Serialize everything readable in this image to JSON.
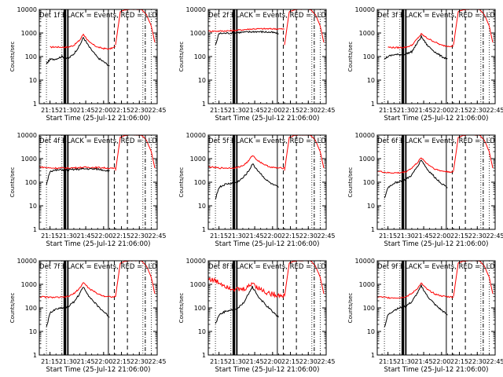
{
  "chart_data": [
    {
      "type": "line",
      "title": "Det 1f BLACK = Events, RED = LLD",
      "xlabel": "Start Time (25-Jul-12 21:06:00)",
      "ylabel": "Counts/sec",
      "x_ticks": [
        "21:15",
        "21:30",
        "21:45",
        "22:00",
        "22:15",
        "22:30",
        "22:45"
      ],
      "y_ticks": [
        "1",
        "10",
        "100",
        "1000",
        "10000"
      ],
      "ylim": [
        1,
        10000
      ],
      "y_scale": "log",
      "series": [
        {
          "x": [
            "21:15",
            "21:20",
            "21:25",
            "21:30",
            "21:35",
            "21:40",
            "21:43",
            "21:48",
            "21:55",
            "22:00",
            "22:05",
            "22:10"
          ],
          "values": [
            250,
            255,
            250,
            250,
            300,
            500,
            900,
            400,
            250,
            220,
            210,
            260
          ]
        },
        {
          "x": [
            "21:12",
            "21:15",
            "21:20",
            "21:25",
            "21:30",
            "21:35",
            "21:40",
            "21:43",
            "21:48",
            "21:55",
            "22:00",
            "22:05"
          ],
          "values": [
            50,
            75,
            80,
            100,
            80,
            130,
            300,
            650,
            250,
            90,
            60,
            40
          ]
        }
      ]
    },
    {
      "type": "line",
      "title": "Det 2f BLACK = Events, RED = LLD",
      "xlabel": "Start Time (25-Jul-12 21:06:00)",
      "ylabel": "Counts/sec",
      "x_ticks": [
        "21:15",
        "21:30",
        "21:45",
        "22:00",
        "22:15",
        "22:30",
        "22:45"
      ],
      "y_ticks": [
        "1",
        "10",
        "100",
        "1000",
        "10000"
      ],
      "ylim": [
        1,
        10000
      ],
      "y_scale": "log",
      "series": [
        {
          "x": [
            "21:06",
            "21:15",
            "21:25",
            "21:30",
            "21:40",
            "21:45",
            "21:55",
            "22:00",
            "22:05",
            "22:10"
          ],
          "values": [
            1200,
            1200,
            1250,
            1300,
            1450,
            1500,
            1500,
            1500,
            1500,
            1450
          ]
        },
        {
          "x": [
            "21:12",
            "21:15",
            "21:25",
            "21:30",
            "21:40",
            "21:45",
            "21:55",
            "22:00",
            "22:05"
          ],
          "values": [
            300,
            950,
            1000,
            1050,
            1100,
            1150,
            1100,
            1050,
            950
          ]
        }
      ]
    },
    {
      "type": "line",
      "title": "Det 3f BLACK = Events, RED = LLD",
      "xlabel": "Start Time (25-Jul-12 21:06:00)",
      "ylabel": "Counts/sec",
      "x_ticks": [
        "21:15",
        "21:30",
        "21:45",
        "22:00",
        "22:15",
        "22:30",
        "22:45"
      ],
      "y_ticks": [
        "1",
        "10",
        "100",
        "1000",
        "10000"
      ],
      "ylim": [
        1,
        10000
      ],
      "y_scale": "log",
      "series": [
        {
          "x": [
            "21:15",
            "21:20",
            "21:25",
            "21:30",
            "21:35",
            "21:40",
            "21:43",
            "21:48",
            "21:55",
            "22:00",
            "22:05",
            "22:10"
          ],
          "values": [
            250,
            240,
            240,
            250,
            300,
            600,
            900,
            600,
            400,
            300,
            280,
            280
          ]
        },
        {
          "x": [
            "21:12",
            "21:15",
            "21:20",
            "21:25",
            "21:30",
            "21:35",
            "21:40",
            "21:43",
            "21:48",
            "21:55",
            "22:00",
            "22:05"
          ],
          "values": [
            80,
            100,
            120,
            120,
            130,
            160,
            400,
            700,
            300,
            150,
            100,
            80
          ]
        }
      ]
    },
    {
      "type": "line",
      "title": "Det 4f BLACK = Events, RED = LLD",
      "xlabel": "Start Time (25-Jul-12 21:06:00)",
      "ylabel": "Counts/sec",
      "x_ticks": [
        "21:15",
        "21:30",
        "21:45",
        "22:00",
        "22:15",
        "22:30",
        "22:45"
      ],
      "y_ticks": [
        "1",
        "10",
        "100",
        "1000",
        "10000"
      ],
      "ylim": [
        1,
        10000
      ],
      "y_scale": "log",
      "series": [
        {
          "x": [
            "21:06",
            "21:15",
            "21:25",
            "21:30",
            "21:40",
            "21:45",
            "21:55",
            "22:00",
            "22:05",
            "22:10"
          ],
          "values": [
            450,
            400,
            400,
            400,
            420,
            430,
            420,
            410,
            390,
            380
          ]
        },
        {
          "x": [
            "21:12",
            "21:15",
            "21:25",
            "21:30",
            "21:40",
            "21:45",
            "21:55",
            "22:00",
            "22:05"
          ],
          "values": [
            80,
            300,
            340,
            330,
            360,
            370,
            360,
            330,
            300
          ]
        }
      ]
    },
    {
      "type": "line",
      "title": "Det 5f BLACK = Events, RED = LLD",
      "xlabel": "Start Time (25-Jul-12 21:06:00)",
      "ylabel": "Counts/sec",
      "x_ticks": [
        "21:15",
        "21:30",
        "21:45",
        "22:00",
        "22:15",
        "22:30",
        "22:45"
      ],
      "y_ticks": [
        "1",
        "10",
        "100",
        "1000",
        "10000"
      ],
      "ylim": [
        1,
        10000
      ],
      "y_scale": "log",
      "series": [
        {
          "x": [
            "21:06",
            "21:15",
            "21:25",
            "21:30",
            "21:35",
            "21:40",
            "21:43",
            "21:48",
            "21:55",
            "22:00",
            "22:05",
            "22:10"
          ],
          "values": [
            450,
            400,
            400,
            420,
            500,
            800,
            1400,
            800,
            500,
            420,
            400,
            400
          ]
        },
        {
          "x": [
            "21:12",
            "21:15",
            "21:20",
            "21:25",
            "21:30",
            "21:35",
            "21:40",
            "21:43",
            "21:48",
            "21:55",
            "22:00",
            "22:05"
          ],
          "values": [
            20,
            60,
            80,
            90,
            100,
            150,
            300,
            600,
            300,
            120,
            80,
            60
          ]
        }
      ]
    },
    {
      "type": "line",
      "title": "Det 6f BLACK = Events, RED = LLD",
      "xlabel": "Start Time (25-Jul-12 21:06:00)",
      "ylabel": "Counts/sec",
      "x_ticks": [
        "21:15",
        "21:30",
        "21:45",
        "22:00",
        "22:15",
        "22:30",
        "22:45"
      ],
      "y_ticks": [
        "1",
        "10",
        "100",
        "1000",
        "10000"
      ],
      "ylim": [
        1,
        10000
      ],
      "y_scale": "log",
      "series": [
        {
          "x": [
            "21:06",
            "21:15",
            "21:25",
            "21:30",
            "21:35",
            "21:40",
            "21:43",
            "21:48",
            "21:55",
            "22:00",
            "22:05",
            "22:10"
          ],
          "values": [
            300,
            250,
            250,
            280,
            400,
            700,
            1100,
            600,
            350,
            300,
            280,
            270
          ]
        },
        {
          "x": [
            "21:12",
            "21:15",
            "21:20",
            "21:25",
            "21:30",
            "21:35",
            "21:40",
            "21:43",
            "21:48",
            "21:55",
            "22:00",
            "22:05"
          ],
          "values": [
            20,
            60,
            90,
            110,
            130,
            200,
            500,
            900,
            350,
            150,
            90,
            60
          ]
        }
      ]
    },
    {
      "type": "line",
      "title": "Det 7f BLACK = Events, RED = LLD",
      "xlabel": "Start Time (25-Jul-12 21:06:00)",
      "ylabel": "Counts/sec",
      "x_ticks": [
        "21:15",
        "21:30",
        "21:45",
        "22:00",
        "22:15",
        "22:30",
        "22:45"
      ],
      "y_ticks": [
        "1",
        "10",
        "100",
        "1000",
        "10000"
      ],
      "ylim": [
        1,
        10000
      ],
      "y_scale": "log",
      "series": [
        {
          "x": [
            "21:06",
            "21:15",
            "21:25",
            "21:30",
            "21:35",
            "21:40",
            "21:43",
            "21:48",
            "21:55",
            "22:00",
            "22:05",
            "22:10"
          ],
          "values": [
            300,
            280,
            280,
            300,
            400,
            700,
            1200,
            650,
            400,
            320,
            300,
            290
          ]
        },
        {
          "x": [
            "21:12",
            "21:15",
            "21:20",
            "21:25",
            "21:30",
            "21:35",
            "21:40",
            "21:43",
            "21:48",
            "21:55",
            "22:00",
            "22:05"
          ],
          "values": [
            15,
            60,
            90,
            100,
            110,
            180,
            400,
            800,
            300,
            120,
            70,
            40
          ]
        }
      ]
    },
    {
      "type": "line",
      "title": "Det 8f BLACK = Events, RED = LLD",
      "xlabel": "Start Time (25-Jul-12 21:06:00)",
      "ylabel": "Counts/sec",
      "x_ticks": [
        "21:15",
        "21:30",
        "21:45",
        "22:00",
        "22:15",
        "22:30",
        "22:45"
      ],
      "y_ticks": [
        "1",
        "10",
        "100",
        "1000",
        "10000"
      ],
      "ylim": [
        1,
        10000
      ],
      "y_scale": "log",
      "series": [
        {
          "x": [
            "21:06",
            "21:10",
            "21:15",
            "21:20",
            "21:25",
            "21:30",
            "21:35",
            "21:40",
            "21:43",
            "21:48",
            "21:55",
            "22:00",
            "22:05",
            "22:10"
          ],
          "values": [
            1800,
            1500,
            1200,
            900,
            700,
            600,
            600,
            800,
            1200,
            700,
            450,
            380,
            350,
            340
          ]
        },
        {
          "x": [
            "21:12",
            "21:15",
            "21:20",
            "21:25",
            "21:30",
            "21:35",
            "21:40",
            "21:43",
            "21:48",
            "21:55",
            "22:00",
            "22:05"
          ],
          "values": [
            20,
            50,
            70,
            80,
            90,
            150,
            400,
            800,
            300,
            120,
            70,
            40
          ]
        }
      ]
    },
    {
      "type": "line",
      "title": "Det 9f BLACK = Events, RED = LLD",
      "xlabel": "Start Time (25-Jul-12 21:06:00)",
      "ylabel": "Counts/sec",
      "x_ticks": [
        "21:15",
        "21:30",
        "21:45",
        "22:00",
        "22:15",
        "22:30",
        "22:45"
      ],
      "y_ticks": [
        "1",
        "10",
        "100",
        "1000",
        "10000"
      ],
      "ylim": [
        1,
        10000
      ],
      "y_scale": "log",
      "series": [
        {
          "x": [
            "21:06",
            "21:15",
            "21:25",
            "21:30",
            "21:35",
            "21:40",
            "21:43",
            "21:48",
            "21:55",
            "22:00",
            "22:05",
            "22:10"
          ],
          "values": [
            300,
            270,
            270,
            300,
            400,
            700,
            1100,
            600,
            380,
            320,
            300,
            290
          ]
        },
        {
          "x": [
            "21:12",
            "21:15",
            "21:20",
            "21:25",
            "21:30",
            "21:35",
            "21:40",
            "21:43",
            "21:48",
            "21:55",
            "22:00",
            "22:05"
          ],
          "values": [
            15,
            50,
            80,
            100,
            120,
            180,
            450,
            850,
            320,
            130,
            80,
            50
          ]
        }
      ]
    }
  ],
  "rise": {
    "x": [
      "22:10",
      "22:14",
      "22:18",
      "22:22",
      "22:28",
      "22:32",
      "22:36",
      "22:40",
      "22:43"
    ],
    "values": [
      300,
      8000,
      9500,
      10000,
      10000,
      9800,
      6000,
      2000,
      400
    ]
  },
  "markers": {
    "thin_dotted": [
      "21:12",
      "21:25",
      "22:33",
      "22:40"
    ],
    "thick_solid": [
      "21:27",
      "21:28",
      "21:30"
    ],
    "solid": [
      "22:04"
    ],
    "dashed": [
      "22:09",
      "22:20"
    ],
    "dash_dot": [
      "22:35"
    ]
  },
  "colors": {
    "events": "#000000",
    "lld": "#ff0000",
    "axes": "#000000"
  }
}
